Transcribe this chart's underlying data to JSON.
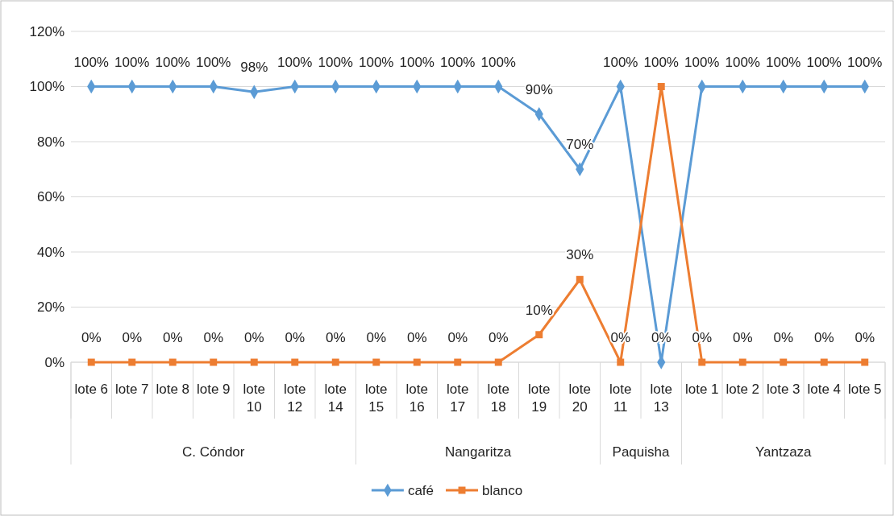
{
  "chart_data": {
    "type": "line",
    "categories": [
      "lote 6",
      "lote 7",
      "lote 8",
      "lote 9",
      "lote 10",
      "lote 12",
      "lote 14",
      "lote 15",
      "lote 16",
      "lote 17",
      "lote 18",
      "lote 19",
      "lote 20",
      "lote 11",
      "lote 13",
      "lote 1",
      "lote 2",
      "lote 3",
      "lote 4",
      "lote 5"
    ],
    "series": [
      {
        "name": "café",
        "color": "#5b9bd5",
        "marker": "diamond",
        "values": [
          100,
          100,
          100,
          100,
          98,
          100,
          100,
          100,
          100,
          100,
          100,
          90,
          70,
          100,
          0,
          100,
          100,
          100,
          100,
          100
        ],
        "value_labels": [
          "100%",
          "100%",
          "100%",
          "100%",
          "98%",
          "100%",
          "100%",
          "100%",
          "100%",
          "100%",
          "100%",
          "90%",
          "70%",
          "100%",
          "0%",
          "100%",
          "100%",
          "100%",
          "100%",
          "100%"
        ]
      },
      {
        "name": "blanco",
        "color": "#ed7d31",
        "marker": "square",
        "values": [
          0,
          0,
          0,
          0,
          0,
          0,
          0,
          0,
          0,
          0,
          0,
          10,
          30,
          0,
          100,
          0,
          0,
          0,
          0,
          0
        ],
        "value_labels": [
          "0%",
          "0%",
          "0%",
          "0%",
          "0%",
          "0%",
          "0%",
          "0%",
          "0%",
          "0%",
          "0%",
          "10%",
          "30%",
          "0%",
          "100%",
          "0%",
          "0%",
          "0%",
          "0%",
          "0%"
        ]
      }
    ],
    "ylim": [
      0,
      120
    ],
    "yticks": [
      {
        "value": 0,
        "label": "0%"
      },
      {
        "value": 20,
        "label": "20%"
      },
      {
        "value": 40,
        "label": "40%"
      },
      {
        "value": 60,
        "label": "60%"
      },
      {
        "value": 80,
        "label": "80%"
      },
      {
        "value": 100,
        "label": "100%"
      },
      {
        "value": 120,
        "label": "120%"
      }
    ],
    "grid": "y",
    "legend": "bottom",
    "line_style": "solid",
    "annotations": [
      "C. Cóndor",
      "Nangaritza",
      "Paquisha",
      "Yantzaza"
    ]
  }
}
